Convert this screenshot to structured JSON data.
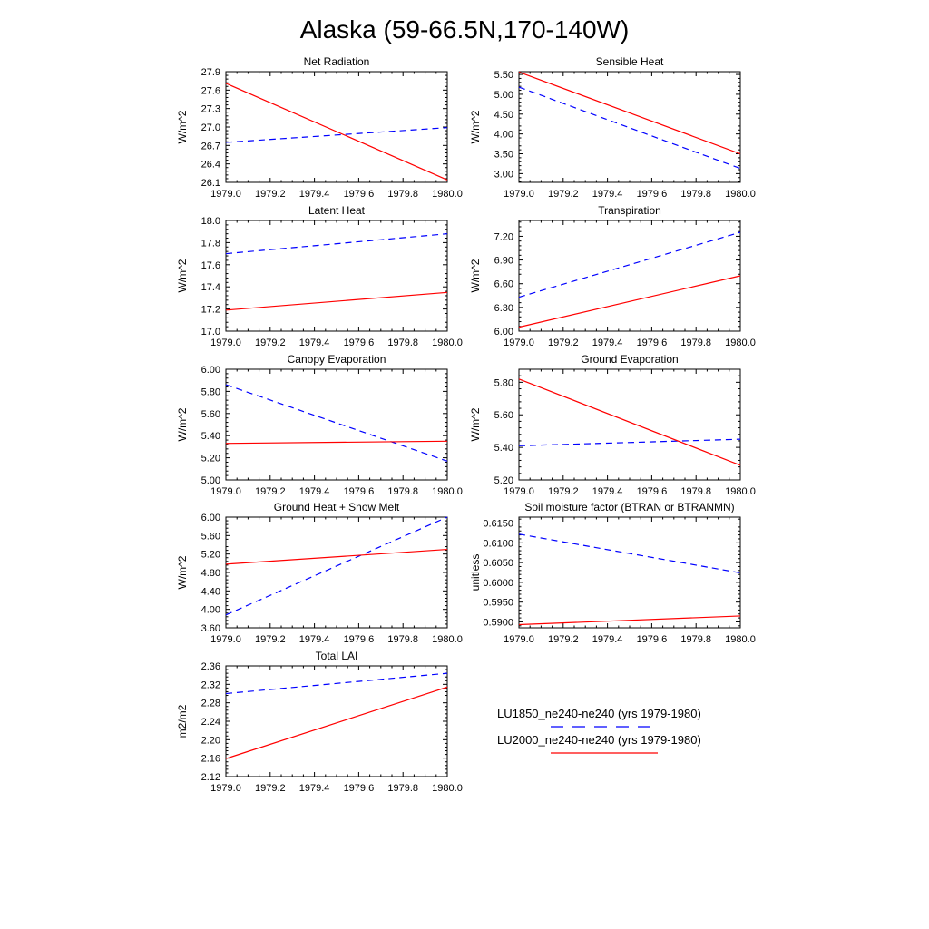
{
  "figure": {
    "title": "Alaska (59-66.5N,170-140W)",
    "colors": {
      "LU1850": "#0000ff",
      "LU2000": "#ff0000"
    }
  },
  "legend": {
    "entries": [
      {
        "label": "LU1850_ne240-ne240 (yrs 1979-1980)",
        "style": "dashed",
        "color": "#0000ff"
      },
      {
        "label": "LU2000_ne240-ne240 (yrs 1979-1980)",
        "style": "solid",
        "color": "#ff0000"
      }
    ]
  },
  "chart_data": [
    {
      "type": "line",
      "title": "Net Radiation",
      "ylabel": "W/m^2",
      "x": [
        1979.0,
        1980.0
      ],
      "xlim": [
        1979.0,
        1980.0
      ],
      "xticks": [
        "1979.0",
        "1979.2",
        "1979.4",
        "1979.6",
        "1979.8",
        "1980.0"
      ],
      "ylim": [
        26.1,
        27.9
      ],
      "yticks": [
        "26.1",
        "26.4",
        "26.7",
        "27.0",
        "27.3",
        "27.6",
        "27.9"
      ],
      "series": [
        {
          "name": "LU1850_ne240-ne240 (yrs 1979-1980)",
          "values": [
            26.75,
            26.99
          ]
        },
        {
          "name": "LU2000_ne240-ne240 (yrs 1979-1980)",
          "values": [
            27.71,
            26.14
          ]
        }
      ]
    },
    {
      "type": "line",
      "title": "Sensible Heat",
      "ylabel": "W/m^2",
      "x": [
        1979.0,
        1980.0
      ],
      "xlim": [
        1979.0,
        1980.0
      ],
      "xticks": [
        "1979.0",
        "1979.2",
        "1979.4",
        "1979.6",
        "1979.8",
        "1980.0"
      ],
      "ylim": [
        2.78,
        5.57
      ],
      "yticks": [
        "3.00",
        "3.50",
        "4.00",
        "4.50",
        "5.00",
        "5.50"
      ],
      "series": [
        {
          "name": "LU1850_ne240-ne240 (yrs 1979-1980)",
          "values": [
            5.18,
            3.13
          ]
        },
        {
          "name": "LU2000_ne240-ne240 (yrs 1979-1980)",
          "values": [
            5.56,
            3.5
          ]
        }
      ]
    },
    {
      "type": "line",
      "title": "Latent Heat",
      "ylabel": "W/m^2",
      "x": [
        1979.0,
        1980.0
      ],
      "xlim": [
        1979.0,
        1980.0
      ],
      "xticks": [
        "1979.0",
        "1979.2",
        "1979.4",
        "1979.6",
        "1979.8",
        "1980.0"
      ],
      "ylim": [
        17.0,
        18.0
      ],
      "yticks": [
        "17.0",
        "17.2",
        "17.4",
        "17.6",
        "17.8",
        "18.0"
      ],
      "series": [
        {
          "name": "LU1850_ne240-ne240 (yrs 1979-1980)",
          "values": [
            17.7,
            17.88
          ]
        },
        {
          "name": "LU2000_ne240-ne240 (yrs 1979-1980)",
          "values": [
            17.19,
            17.35
          ]
        }
      ]
    },
    {
      "type": "line",
      "title": "Transpiration",
      "ylabel": "W/m^2",
      "x": [
        1979.0,
        1980.0
      ],
      "xlim": [
        1979.0,
        1980.0
      ],
      "xticks": [
        "1979.0",
        "1979.2",
        "1979.4",
        "1979.6",
        "1979.8",
        "1980.0"
      ],
      "ylim": [
        6.0,
        7.4
      ],
      "yticks": [
        "6.00",
        "6.30",
        "6.60",
        "6.90",
        "7.20"
      ],
      "series": [
        {
          "name": "LU1850_ne240-ne240 (yrs 1979-1980)",
          "values": [
            6.43,
            7.25
          ]
        },
        {
          "name": "LU2000_ne240-ne240 (yrs 1979-1980)",
          "values": [
            6.05,
            6.7
          ]
        }
      ]
    },
    {
      "type": "line",
      "title": "Canopy Evaporation",
      "ylabel": "W/m^2",
      "x": [
        1979.0,
        1980.0
      ],
      "xlim": [
        1979.0,
        1980.0
      ],
      "xticks": [
        "1979.0",
        "1979.2",
        "1979.4",
        "1979.6",
        "1979.8",
        "1980.0"
      ],
      "ylim": [
        5.0,
        6.0
      ],
      "yticks": [
        "5.00",
        "5.20",
        "5.40",
        "5.60",
        "5.80",
        "6.00"
      ],
      "series": [
        {
          "name": "LU1850_ne240-ne240 (yrs 1979-1980)",
          "values": [
            5.86,
            5.17
          ]
        },
        {
          "name": "LU2000_ne240-ne240 (yrs 1979-1980)",
          "values": [
            5.33,
            5.35
          ]
        }
      ]
    },
    {
      "type": "line",
      "title": "Ground Evaporation",
      "ylabel": "W/m^2",
      "x": [
        1979.0,
        1980.0
      ],
      "xlim": [
        1979.0,
        1980.0
      ],
      "xticks": [
        "1979.0",
        "1979.2",
        "1979.4",
        "1979.6",
        "1979.8",
        "1980.0"
      ],
      "ylim": [
        5.2,
        5.88
      ],
      "yticks": [
        "5.20",
        "5.40",
        "5.60",
        "5.80"
      ],
      "series": [
        {
          "name": "LU1850_ne240-ne240 (yrs 1979-1980)",
          "values": [
            5.41,
            5.45
          ]
        },
        {
          "name": "LU2000_ne240-ne240 (yrs 1979-1980)",
          "values": [
            5.82,
            5.29
          ]
        }
      ]
    },
    {
      "type": "line",
      "title": "Ground Heat + Snow Melt",
      "ylabel": "W/m^2",
      "x": [
        1979.0,
        1980.0
      ],
      "xlim": [
        1979.0,
        1980.0
      ],
      "xticks": [
        "1979.0",
        "1979.2",
        "1979.4",
        "1979.6",
        "1979.8",
        "1980.0"
      ],
      "ylim": [
        3.6,
        6.0
      ],
      "yticks": [
        "3.60",
        "4.00",
        "4.40",
        "4.80",
        "5.20",
        "5.60",
        "6.00"
      ],
      "series": [
        {
          "name": "LU1850_ne240-ne240 (yrs 1979-1980)",
          "values": [
            3.88,
            6.0
          ]
        },
        {
          "name": "LU2000_ne240-ne240 (yrs 1979-1980)",
          "values": [
            4.98,
            5.3
          ]
        }
      ]
    },
    {
      "type": "line",
      "title": "Soil moisture factor (BTRAN or BTRANMN)",
      "ylabel": "unitless",
      "x": [
        1979.0,
        1980.0
      ],
      "xlim": [
        1979.0,
        1980.0
      ],
      "xticks": [
        "1979.0",
        "1979.2",
        "1979.4",
        "1979.6",
        "1979.8",
        "1980.0"
      ],
      "ylim": [
        0.5885,
        0.6165
      ],
      "yticks": [
        "0.5900",
        "0.5950",
        "0.6000",
        "0.6050",
        "0.6100",
        "0.6150"
      ],
      "series": [
        {
          "name": "LU1850_ne240-ne240 (yrs 1979-1980)",
          "values": [
            0.6122,
            0.6024
          ]
        },
        {
          "name": "LU2000_ne240-ne240 (yrs 1979-1980)",
          "values": [
            0.5893,
            0.5915
          ]
        }
      ]
    },
    {
      "type": "line",
      "title": "Total LAI",
      "ylabel": "m2/m2",
      "x": [
        1979.0,
        1980.0
      ],
      "xlim": [
        1979.0,
        1980.0
      ],
      "xticks": [
        "1979.0",
        "1979.2",
        "1979.4",
        "1979.6",
        "1979.8",
        "1980.0"
      ],
      "ylim": [
        2.12,
        2.36
      ],
      "yticks": [
        "2.12",
        "2.16",
        "2.20",
        "2.24",
        "2.28",
        "2.32",
        "2.36"
      ],
      "series": [
        {
          "name": "LU1850_ne240-ne240 (yrs 1979-1980)",
          "values": [
            2.3,
            2.344
          ]
        },
        {
          "name": "LU2000_ne240-ne240 (yrs 1979-1980)",
          "values": [
            2.159,
            2.314
          ]
        }
      ]
    }
  ]
}
